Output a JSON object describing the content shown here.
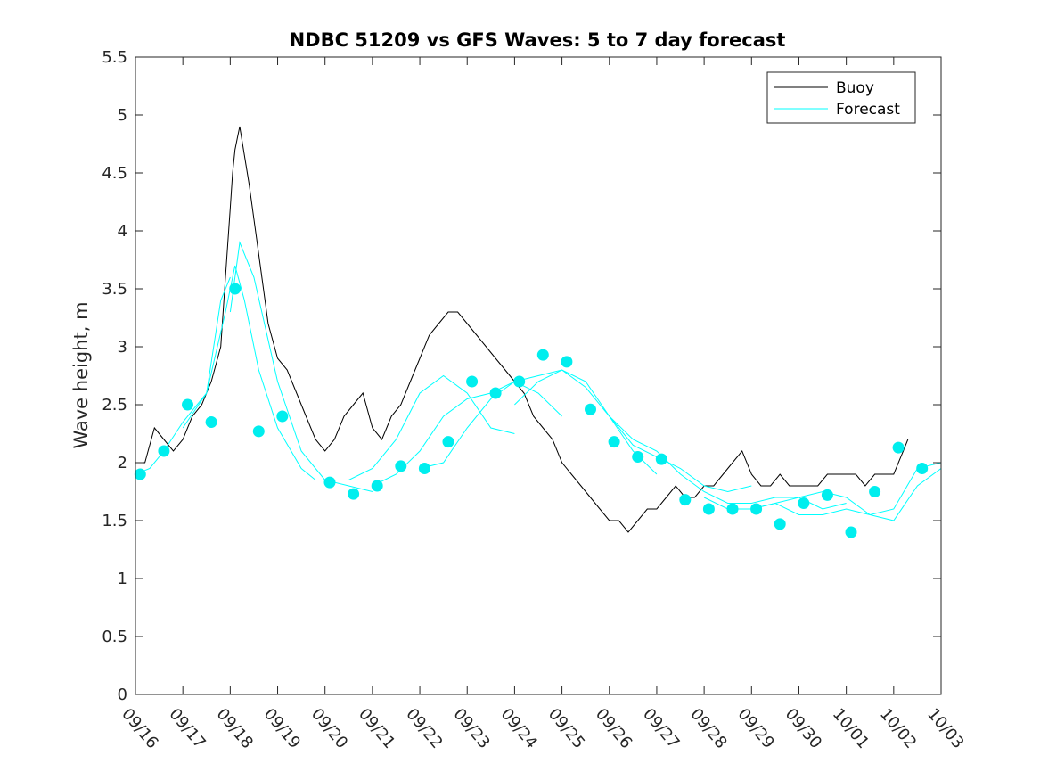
{
  "chart_data": {
    "type": "line",
    "title": "NDBC 51209 vs GFS Waves: 5 to 7 day forecast",
    "xlabel": "",
    "ylabel": "Wave height, m",
    "xlim": [
      0,
      17
    ],
    "ylim": [
      0,
      5.5
    ],
    "yticks": [
      "0",
      "0.5",
      "1",
      "1.5",
      "2",
      "2.5",
      "3",
      "3.5",
      "4",
      "4.5",
      "5",
      "5.5"
    ],
    "xticks": [
      "09/16",
      "09/17",
      "09/18",
      "09/19",
      "09/20",
      "09/21",
      "09/22",
      "09/23",
      "09/24",
      "09/25",
      "09/26",
      "09/27",
      "09/28",
      "09/29",
      "09/30",
      "10/01",
      "10/02",
      "10/03"
    ],
    "legend": {
      "position": "top-right",
      "entries": [
        "Buoy",
        "Forecast"
      ]
    },
    "colors": {
      "buoy": "#000000",
      "forecast": "#00ffff",
      "marker": "#00eeee",
      "axis": "#262626"
    },
    "buoy": {
      "x": [
        0,
        0.2,
        0.4,
        0.6,
        0.8,
        1.0,
        1.2,
        1.4,
        1.6,
        1.8,
        1.9,
        2.0,
        2.05,
        2.1,
        2.15,
        2.2,
        2.4,
        2.6,
        2.8,
        3.0,
        3.2,
        3.4,
        3.6,
        3.8,
        4.0,
        4.2,
        4.4,
        4.6,
        4.8,
        5.0,
        5.2,
        5.4,
        5.6,
        5.8,
        6.0,
        6.2,
        6.4,
        6.6,
        6.8,
        7.0,
        7.2,
        7.4,
        7.6,
        7.8,
        8.0,
        8.2,
        8.4,
        8.6,
        8.8,
        9.0,
        9.2,
        9.4,
        9.6,
        9.8,
        10.0,
        10.2,
        10.4,
        10.6,
        10.8,
        11.0,
        11.2,
        11.4,
        11.6,
        11.8,
        12.0,
        12.2,
        12.4,
        12.6,
        12.8,
        13.0,
        13.2,
        13.4,
        13.6,
        13.8,
        14.0,
        14.2,
        14.4,
        14.6,
        14.8,
        15.0,
        15.2,
        15.4,
        15.6,
        15.8,
        16.0,
        16.2,
        16.3
      ],
      "y": [
        2.0,
        2.0,
        2.3,
        2.2,
        2.1,
        2.2,
        2.4,
        2.5,
        2.7,
        3.0,
        3.6,
        4.2,
        4.5,
        4.7,
        4.8,
        4.9,
        4.4,
        3.8,
        3.2,
        2.9,
        2.8,
        2.6,
        2.4,
        2.2,
        2.1,
        2.2,
        2.4,
        2.5,
        2.6,
        2.3,
        2.2,
        2.4,
        2.5,
        2.7,
        2.9,
        3.1,
        3.2,
        3.3,
        3.3,
        3.2,
        3.1,
        3.0,
        2.9,
        2.8,
        2.7,
        2.6,
        2.4,
        2.3,
        2.2,
        2.0,
        1.9,
        1.8,
        1.7,
        1.6,
        1.5,
        1.5,
        1.4,
        1.5,
        1.6,
        1.6,
        1.7,
        1.8,
        1.7,
        1.7,
        1.8,
        1.8,
        1.9,
        2.0,
        2.1,
        1.9,
        1.8,
        1.8,
        1.9,
        1.8,
        1.8,
        1.8,
        1.8,
        1.9,
        1.9,
        1.9,
        1.9,
        1.8,
        1.9,
        1.9,
        1.9,
        2.1,
        2.2
      ]
    },
    "forecast": [
      {
        "name": "Forecast",
        "x": [
          0,
          0.3,
          0.6,
          1.0,
          1.5,
          1.8,
          2.0
        ],
        "y": [
          1.9,
          1.95,
          2.1,
          2.35,
          2.6,
          3.4,
          3.6
        ]
      },
      {
        "name": "Forecast",
        "x": [
          1.0,
          1.5,
          1.9,
          2.1,
          2.3,
          2.6,
          3.0,
          3.5,
          3.8
        ],
        "y": [
          2.3,
          2.6,
          3.3,
          3.7,
          3.4,
          2.8,
          2.3,
          1.95,
          1.85
        ]
      },
      {
        "name": "Forecast",
        "x": [
          2.0,
          2.2,
          2.5,
          3.0,
          3.5,
          4.0,
          4.5,
          5.0
        ],
        "y": [
          3.3,
          3.9,
          3.6,
          2.7,
          2.1,
          1.85,
          1.8,
          1.75
        ]
      },
      {
        "name": "Forecast",
        "x": [
          4.0,
          4.5,
          5.0,
          5.5,
          6.0,
          6.5,
          7.0,
          7.5,
          8.0
        ],
        "y": [
          1.85,
          1.85,
          1.95,
          2.2,
          2.6,
          2.75,
          2.6,
          2.3,
          2.25
        ]
      },
      {
        "name": "Forecast",
        "x": [
          5.0,
          5.5,
          6.0,
          6.5,
          7.0,
          7.5,
          8.0,
          8.5,
          9.0
        ],
        "y": [
          1.8,
          1.9,
          2.1,
          2.4,
          2.55,
          2.6,
          2.7,
          2.6,
          2.4
        ]
      },
      {
        "name": "Forecast",
        "x": [
          6.0,
          6.5,
          7.0,
          7.5,
          8.0,
          8.5,
          9.0,
          9.5,
          10.0,
          10.5,
          11.0
        ],
        "y": [
          1.95,
          2.0,
          2.3,
          2.55,
          2.7,
          2.75,
          2.8,
          2.65,
          2.4,
          2.1,
          1.9
        ]
      },
      {
        "name": "Forecast",
        "x": [
          8.0,
          8.5,
          9.0,
          9.5,
          10.0,
          10.5,
          11.0,
          11.5,
          12.0,
          12.5,
          13.0
        ],
        "y": [
          2.5,
          2.7,
          2.8,
          2.7,
          2.4,
          2.15,
          2.05,
          1.95,
          1.8,
          1.75,
          1.8
        ]
      },
      {
        "name": "Forecast",
        "x": [
          10.0,
          10.5,
          11.0,
          11.5,
          12.0,
          12.5,
          13.0,
          13.5,
          14.0,
          14.5,
          15.0
        ],
        "y": [
          2.4,
          2.2,
          2.1,
          1.9,
          1.75,
          1.65,
          1.65,
          1.7,
          1.7,
          1.6,
          1.65
        ]
      },
      {
        "name": "Forecast",
        "x": [
          12.0,
          12.5,
          13.0,
          13.5,
          14.0,
          14.5,
          15.0,
          15.5,
          16.0,
          16.5,
          17.0
        ],
        "y": [
          1.7,
          1.6,
          1.6,
          1.65,
          1.55,
          1.55,
          1.6,
          1.55,
          1.5,
          1.8,
          1.95
        ]
      },
      {
        "name": "Forecast",
        "x": [
          13.0,
          13.5,
          14.0,
          14.5,
          15.0,
          15.5,
          16.0,
          16.5,
          17.0
        ],
        "y": [
          1.6,
          1.65,
          1.7,
          1.75,
          1.7,
          1.55,
          1.6,
          1.95,
          2.0
        ]
      }
    ],
    "markers": {
      "x": [
        0.1,
        0.6,
        1.1,
        1.6,
        2.1,
        2.6,
        3.1,
        4.1,
        4.6,
        5.1,
        5.6,
        6.1,
        6.6,
        7.1,
        7.6,
        8.1,
        8.6,
        9.1,
        9.6,
        10.1,
        10.6,
        11.1,
        11.6,
        12.1,
        12.6,
        13.1,
        13.6,
        14.1,
        14.6,
        15.1,
        15.6,
        16.1,
        16.6
      ],
      "y": [
        1.9,
        2.1,
        2.5,
        2.35,
        3.5,
        2.27,
        2.4,
        1.83,
        1.73,
        1.8,
        1.97,
        1.95,
        2.18,
        2.7,
        2.6,
        2.7,
        2.93,
        2.87,
        2.46,
        2.18,
        2.05,
        2.03,
        1.68,
        1.6,
        1.6,
        1.6,
        1.47,
        1.65,
        1.72,
        1.4,
        1.75,
        2.13,
        1.95
      ]
    }
  }
}
